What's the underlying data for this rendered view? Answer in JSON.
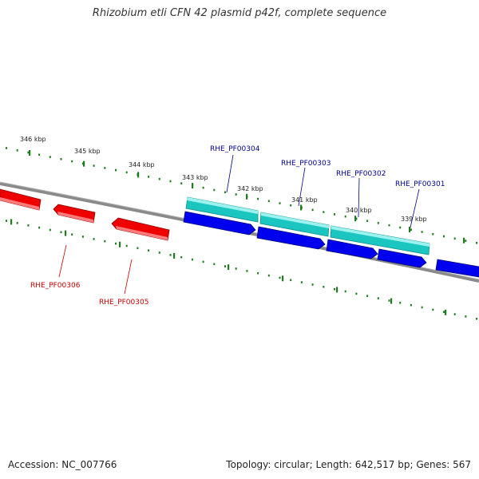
{
  "title": "Rhizobium etli CFN 42 plasmid p42f, complete sequence",
  "footer": {
    "accession": "Accession: NC_007766",
    "topology": "Topology: circular; Length: 642,517 bp; Genes: 567"
  },
  "colors": {
    "background": "#ffffff",
    "backbone": "#808080",
    "tick": "#1e7b1e",
    "forward_gene_label": "#00008b",
    "reverse_gene_label": "#cc0000",
    "cds_blue": "#0000ee",
    "gene_cyan": "#1cc6c0",
    "reverse_gene_red": "#ee0000"
  },
  "kbp_labels": [
    "346 kbp",
    "345 kbp",
    "344 kbp",
    "343 kbp",
    "342 kbp",
    "341 kbp",
    "340 kbp",
    "339 kbp"
  ],
  "forward_genes": [
    "RHE_PF00304",
    "RHE_PF00303",
    "RHE_PF00302",
    "RHE_PF00301"
  ],
  "reverse_genes": [
    "RHE_PF00306",
    "RHE_PF00305"
  ]
}
